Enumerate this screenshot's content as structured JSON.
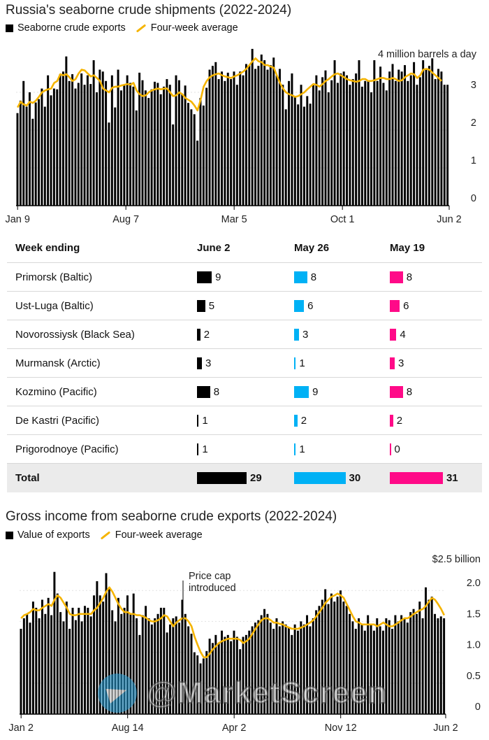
{
  "chart_data": [
    {
      "type": "bar",
      "title": "Russia's seaborne crude shipments (2022-2024)",
      "legend": [
        "Seaborne crude exports",
        "Four-week average"
      ],
      "ylabel": "4 million barrels a day",
      "yticks": [
        "0",
        "1",
        "2",
        "3"
      ],
      "ylim": [
        0,
        4
      ],
      "xticks": [
        "Jan 9",
        "Aug 7",
        "Mar 5",
        "Oct 1",
        "Jun 2"
      ],
      "series": [
        {
          "name": "Seaborne crude exports",
          "values": [
            2.45,
            2.78,
            3.3,
            2.62,
            3.0,
            2.3,
            2.73,
            2.82,
            3.1,
            2.62,
            3.45,
            2.92,
            3.1,
            3.08,
            3.48,
            3.55,
            3.95,
            3.3,
            3.48,
            3.1,
            3.25,
            3.5,
            3.2,
            3.45,
            3.22,
            3.85,
            3.0,
            3.6,
            3.55,
            3.3,
            2.2,
            3.45,
            2.6,
            3.6,
            3.05,
            3.2,
            3.45,
            3.25,
            3.15,
            2.52,
            3.52,
            3.32,
            3.05,
            2.85,
            3.08,
            3.28,
            3.25,
            2.95,
            3.15,
            3.35,
            3.2,
            2.15,
            3.45,
            3.32,
            2.95,
            3.18,
            2.72,
            2.55,
            2.42,
            1.72,
            2.85,
            2.65,
            3.12,
            3.6,
            3.7,
            3.8,
            3.35,
            3.55,
            3.3,
            3.52,
            3.35,
            3.55,
            3.2,
            3.55,
            3.45,
            3.75,
            3.72,
            4.15,
            3.62,
            3.7,
            4.0,
            3.85,
            3.6,
            3.72,
            3.92,
            3.45,
            3.62,
            3.2,
            2.55,
            3.3,
            3.5,
            2.9,
            2.68,
            3.2,
            2.62,
            2.9,
            2.7,
            3.22,
            3.45,
            3.05,
            3.4,
            3.58,
            3.0,
            3.32,
            3.85,
            3.25,
            3.5,
            3.55,
            3.45,
            3.2,
            3.35,
            3.5,
            3.85,
            3.15,
            3.3,
            3.3,
            3.0,
            3.85,
            3.3,
            3.68,
            3.25,
            3.05,
            3.55,
            3.75,
            3.3,
            3.6,
            3.55,
            3.72,
            3.3,
            3.45,
            3.8,
            3.2,
            3.4,
            3.85,
            3.62,
            3.7,
            3.9,
            3.35,
            3.62,
            3.55,
            3.2,
            3.2
          ]
        },
        {
          "name": "Four-week average",
          "values": [
            2.6,
            2.75,
            2.68,
            2.65,
            2.75,
            2.72,
            2.78,
            2.88,
            3.0,
            3.05,
            3.08,
            3.1,
            3.25,
            3.3,
            3.48,
            3.45,
            3.48,
            3.4,
            3.3,
            3.35,
            3.5,
            3.6,
            3.58,
            3.5,
            3.42,
            3.45,
            3.38,
            3.3,
            3.1,
            3.05,
            3.0,
            3.12,
            3.15,
            3.15,
            3.18,
            3.2,
            3.22,
            3.2,
            3.25,
            3.05,
            2.95,
            2.9,
            2.92,
            3.0,
            3.05,
            3.08,
            3.1,
            3.08,
            3.1,
            3.1,
            3.0,
            2.9,
            2.92,
            3.0,
            2.95,
            2.85,
            2.8,
            2.75,
            2.65,
            2.52,
            2.8,
            3.15,
            3.3,
            3.4,
            3.45,
            3.48,
            3.5,
            3.45,
            3.42,
            3.4,
            3.38,
            3.42,
            3.45,
            3.5,
            3.55,
            3.62,
            3.72,
            3.82,
            3.9,
            3.82,
            3.8,
            3.72,
            3.72,
            3.68,
            3.65,
            3.45,
            3.25,
            3.1,
            3.0,
            2.95,
            2.92,
            2.88,
            2.9,
            2.95,
            3.0,
            3.08,
            3.15,
            3.22,
            3.2,
            3.15,
            3.22,
            3.3,
            3.35,
            3.42,
            3.48,
            3.5,
            3.45,
            3.4,
            3.35,
            3.32,
            3.3,
            3.28,
            3.3,
            3.35,
            3.35,
            3.3,
            3.3,
            3.32,
            3.35,
            3.38,
            3.38,
            3.35,
            3.35,
            3.38,
            3.35,
            3.3,
            3.32,
            3.4,
            3.45,
            3.5,
            3.48,
            3.38,
            3.45,
            3.6,
            3.62,
            3.6,
            3.52,
            3.45,
            3.38,
            3.3
          ]
        }
      ]
    },
    {
      "type": "table",
      "columns": [
        "Week ending",
        "June 2",
        "May 26",
        "May 19"
      ],
      "colors": [
        "#000000",
        "#00b1f5",
        "#ff0a88"
      ],
      "rows": [
        {
          "label": "Primorsk (Baltic)",
          "values": [
            9,
            8,
            8
          ]
        },
        {
          "label": "Ust-Luga (Baltic)",
          "values": [
            5,
            6,
            6
          ]
        },
        {
          "label": "Novorossiysk (Black Sea)",
          "values": [
            2,
            3,
            4
          ]
        },
        {
          "label": "Murmansk (Arctic)",
          "values": [
            3,
            1,
            3
          ]
        },
        {
          "label": "Kozmino (Pacific)",
          "values": [
            8,
            9,
            8
          ]
        },
        {
          "label": "De Kastri (Pacific)",
          "values": [
            1,
            2,
            2
          ]
        },
        {
          "label": "Prigorodnoye (Pacific)",
          "values": [
            1,
            1,
            0
          ]
        }
      ],
      "total": {
        "label": "Total",
        "values": [
          29,
          30,
          31
        ]
      }
    },
    {
      "type": "bar",
      "title": "Gross income from seaborne crude exports (2022-2024)",
      "legend": [
        "Value of exports",
        "Four-week average"
      ],
      "ylabel": "$2.5 billion",
      "yticks": [
        "0",
        "0.5",
        "1.0",
        "1.5",
        "2.0"
      ],
      "ylim": [
        0,
        2.5
      ],
      "xticks": [
        "Jan 2",
        "Aug 14",
        "Apr 2",
        "Nov 12",
        "Jun 2"
      ],
      "annotation": "Price cap\nintroduced",
      "series": [
        {
          "name": "Value of exports",
          "values": [
            1.38,
            1.55,
            1.62,
            1.48,
            1.82,
            1.72,
            1.55,
            1.85,
            1.62,
            1.88,
            1.6,
            2.3,
            1.95,
            1.65,
            1.5,
            1.82,
            1.38,
            1.72,
            1.52,
            1.72,
            1.5,
            1.75,
            1.72,
            1.58,
            1.92,
            2.15,
            1.92,
            1.82,
            2.28,
            2.05,
            1.68,
            1.5,
            1.88,
            1.62,
            1.72,
            1.92,
            1.62,
            1.95,
            1.55,
            1.28,
            1.6,
            1.75,
            1.55,
            1.45,
            1.55,
            1.62,
            1.72,
            1.72,
            1.32,
            1.45,
            1.55,
            1.58,
            1.48,
            1.85,
            1.62,
            1.42,
            1.3,
            1.0,
            0.95,
            0.82,
            0.9,
            1.02,
            1.22,
            1.15,
            1.28,
            1.15,
            1.35,
            1.25,
            1.28,
            1.18,
            1.35,
            1.25,
            1.05,
            1.25,
            1.28,
            1.35,
            1.42,
            1.48,
            1.52,
            1.6,
            1.7,
            1.62,
            1.48,
            1.38,
            1.55,
            1.42,
            1.5,
            1.45,
            1.4,
            1.28,
            1.45,
            1.35,
            1.5,
            1.45,
            1.6,
            1.42,
            1.55,
            1.68,
            1.75,
            1.85,
            2.02,
            1.78,
            1.95,
            1.82,
            1.9,
            2.0,
            1.82,
            1.75,
            1.62,
            1.5,
            1.38,
            1.55,
            1.45,
            1.35,
            1.6,
            1.45,
            1.35,
            1.55,
            1.42,
            1.35,
            1.55,
            1.52,
            1.38,
            1.6,
            1.5,
            1.6,
            1.55,
            1.48,
            1.65,
            1.7,
            1.62,
            1.82,
            1.55,
            2.05,
            1.85,
            1.9,
            1.62,
            1.55,
            1.58,
            1.55
          ]
        },
        {
          "name": "Four-week average",
          "values": [
            1.55,
            1.6,
            1.62,
            1.65,
            1.7,
            1.68,
            1.68,
            1.72,
            1.75,
            1.78,
            1.75,
            1.85,
            1.92,
            1.88,
            1.8,
            1.72,
            1.62,
            1.6,
            1.6,
            1.62,
            1.62,
            1.62,
            1.62,
            1.62,
            1.68,
            1.72,
            1.8,
            1.88,
            1.98,
            2.05,
            1.98,
            1.88,
            1.78,
            1.7,
            1.65,
            1.65,
            1.62,
            1.62,
            1.6,
            1.6,
            1.58,
            1.56,
            1.52,
            1.5,
            1.5,
            1.52,
            1.55,
            1.6,
            1.58,
            1.5,
            1.42,
            1.48,
            1.52,
            1.55,
            1.55,
            1.5,
            1.42,
            1.25,
            1.12,
            1.0,
            0.92,
            0.92,
            0.98,
            1.05,
            1.1,
            1.15,
            1.18,
            1.2,
            1.22,
            1.22,
            1.22,
            1.22,
            1.2,
            1.15,
            1.18,
            1.22,
            1.3,
            1.38,
            1.45,
            1.52,
            1.55,
            1.55,
            1.52,
            1.48,
            1.48,
            1.46,
            1.45,
            1.42,
            1.4,
            1.38,
            1.38,
            1.38,
            1.4,
            1.42,
            1.45,
            1.48,
            1.52,
            1.58,
            1.65,
            1.72,
            1.8,
            1.85,
            1.9,
            1.92,
            1.95,
            1.92,
            1.88,
            1.78,
            1.68,
            1.58,
            1.5,
            1.48,
            1.45,
            1.45,
            1.45,
            1.45,
            1.45,
            1.42,
            1.45,
            1.48,
            1.45,
            1.42,
            1.42,
            1.45,
            1.48,
            1.52,
            1.55,
            1.55,
            1.58,
            1.62,
            1.65,
            1.68,
            1.7,
            1.75,
            1.82,
            1.88,
            1.85,
            1.78,
            1.7,
            1.6
          ]
        }
      ]
    }
  ]
}
